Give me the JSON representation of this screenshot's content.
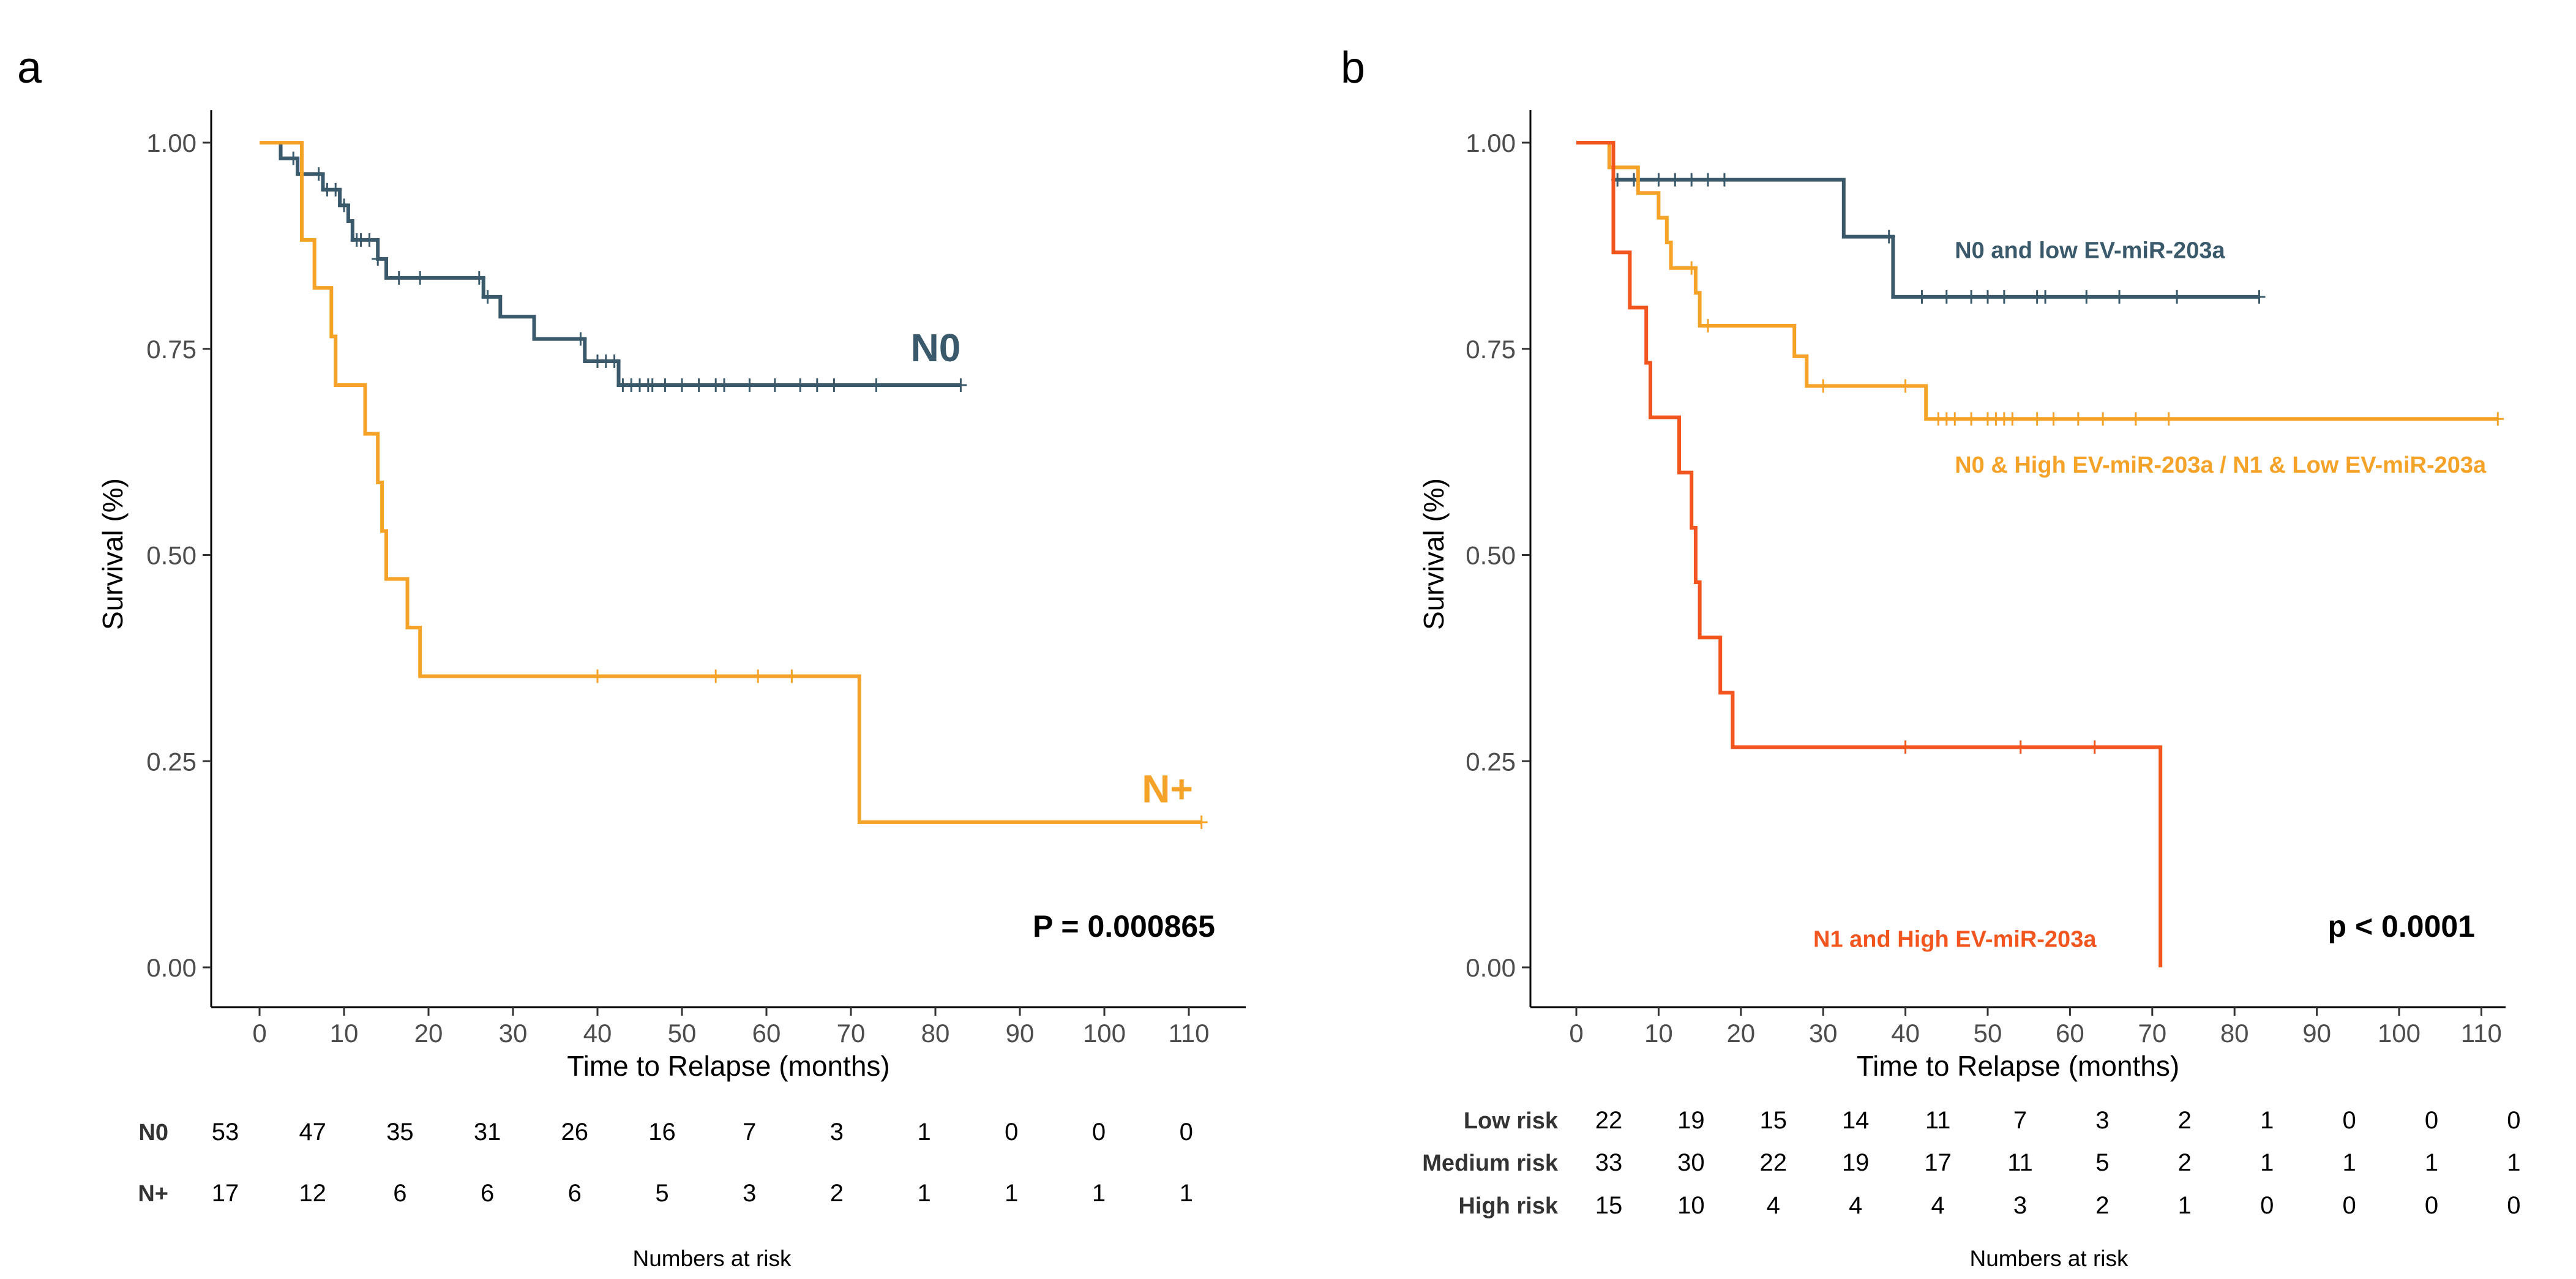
{
  "chart_data": [
    {
      "panel": "a",
      "type": "line",
      "subtype": "kaplan-meier",
      "xlabel": "Time to Relapse (months)",
      "ylabel": "Survival (%)",
      "xlim": [
        0,
        112
      ],
      "ylim": [
        0,
        1
      ],
      "xticks": [
        "0",
        "10",
        "20",
        "30",
        "40",
        "50",
        "60",
        "70",
        "80",
        "90",
        "100",
        "110"
      ],
      "yticks": [
        "0.00",
        "0.25",
        "0.50",
        "0.75",
        "1.00"
      ],
      "pvalue": "P = 0.000865",
      "series": [
        {
          "name": "N0",
          "color": "#3a5a6b",
          "label_fontsize": "large",
          "label_anchor": "end",
          "label_pos": [
            83,
            0.735
          ],
          "steps": [
            [
              0,
              1.0
            ],
            [
              2.5,
              0.981
            ],
            [
              4.5,
              0.962
            ],
            [
              7.5,
              0.943
            ],
            [
              9.5,
              0.924
            ],
            [
              10.5,
              0.905
            ],
            [
              11,
              0.882
            ],
            [
              14,
              0.859
            ],
            [
              15,
              0.836
            ],
            [
              26.5,
              0.813
            ],
            [
              28.5,
              0.789
            ],
            [
              32.5,
              0.762
            ],
            [
              38.5,
              0.735
            ],
            [
              42.5,
              0.706
            ],
            [
              83,
              0.706
            ]
          ],
          "censor_x": [
            4,
            7,
            8,
            9,
            10,
            11.5,
            12,
            13,
            14,
            16.5,
            19,
            26,
            27,
            38,
            40,
            41,
            42,
            43,
            44,
            45,
            46,
            46.5,
            48,
            50,
            52,
            54,
            55,
            58,
            61,
            64,
            66,
            68,
            73,
            83
          ]
        },
        {
          "name": "N+",
          "color": "#f5a228",
          "label_fontsize": "large",
          "label_anchor": "end",
          "label_pos": [
            110.5,
            0.2
          ],
          "steps": [
            [
              0,
              1.0
            ],
            [
              5,
              0.882
            ],
            [
              6.5,
              0.824
            ],
            [
              8.5,
              0.765
            ],
            [
              9,
              0.706
            ],
            [
              12.5,
              0.647
            ],
            [
              14,
              0.588
            ],
            [
              14.5,
              0.529
            ],
            [
              15,
              0.471
            ],
            [
              17.5,
              0.412
            ],
            [
              19,
              0.353
            ],
            [
              71,
              0.176
            ],
            [
              111.5,
              0.176
            ]
          ],
          "censor_x": [
            40,
            54,
            59,
            63,
            111.5
          ]
        }
      ],
      "risk_table": {
        "caption": "Numbers at risk",
        "times": [
          0,
          10,
          20,
          30,
          40,
          50,
          60,
          70,
          80,
          90,
          100,
          110
        ],
        "rows": [
          {
            "name": "N0",
            "values": [
              "53",
              "47",
              "35",
              "31",
              "26",
              "16",
              "7",
              "3",
              "1",
              "0",
              "0",
              "0"
            ]
          },
          {
            "name": "N+",
            "values": [
              "17",
              "12",
              "6",
              "6",
              "6",
              "5",
              "3",
              "2",
              "1",
              "1",
              "1",
              "1"
            ]
          }
        ]
      }
    },
    {
      "panel": "b",
      "type": "line",
      "subtype": "kaplan-meier",
      "xlabel": "Time to Relapse (months)",
      "ylabel": "Survival (%)",
      "xlim": [
        0,
        112
      ],
      "ylim": [
        0,
        1
      ],
      "xticks": [
        "0",
        "10",
        "20",
        "30",
        "40",
        "50",
        "60",
        "70",
        "80",
        "90",
        "100",
        "110"
      ],
      "yticks": [
        "0.00",
        "0.25",
        "0.50",
        "0.75",
        "1.00"
      ],
      "pvalue": "p < 0.0001",
      "series": [
        {
          "name": "N0 and low EV-miR-203a",
          "color": "#3a5a6b",
          "label_fontsize": "small",
          "label_anchor": "start",
          "label_pos": [
            46,
            0.86
          ],
          "steps": [
            [
              0,
              1.0
            ],
            [
              4.5,
              0.955
            ],
            [
              32.5,
              0.886
            ],
            [
              38.5,
              0.813
            ],
            [
              83,
              0.813
            ]
          ],
          "censor_x": [
            5,
            7,
            10,
            12,
            14,
            16,
            18,
            38,
            42,
            45,
            48,
            50,
            52,
            56,
            57,
            62,
            66,
            73,
            83
          ]
        },
        {
          "name": "N0 & High EV-miR-203a / N1 & Low EV-miR-203a",
          "color": "#f5a228",
          "label_fontsize": "small",
          "label_anchor": "start",
          "label_pos": [
            46,
            0.6
          ],
          "steps": [
            [
              0,
              1.0
            ],
            [
              4,
              0.97
            ],
            [
              7.5,
              0.939
            ],
            [
              10,
              0.909
            ],
            [
              11,
              0.879
            ],
            [
              11.5,
              0.848
            ],
            [
              14.5,
              0.818
            ],
            [
              15,
              0.778
            ],
            [
              26.5,
              0.741
            ],
            [
              28,
              0.705
            ],
            [
              42.5,
              0.665
            ],
            [
              112,
              0.665
            ]
          ],
          "censor_x": [
            14,
            16,
            30,
            40,
            44,
            45,
            46,
            48,
            50,
            51,
            52,
            53,
            56,
            58,
            61,
            64,
            68,
            72,
            112
          ]
        },
        {
          "name": "N1 and High EV-miR-203a",
          "color": "#f2551e",
          "label_fontsize": "small",
          "label_anchor": "middle",
          "label_pos": [
            46,
            0.025
          ],
          "steps": [
            [
              0,
              1.0
            ],
            [
              4.5,
              0.867
            ],
            [
              6.5,
              0.8
            ],
            [
              8.5,
              0.733
            ],
            [
              9,
              0.667
            ],
            [
              12.5,
              0.6
            ],
            [
              14,
              0.533
            ],
            [
              14.5,
              0.467
            ],
            [
              15,
              0.4
            ],
            [
              17.5,
              0.333
            ],
            [
              19,
              0.267
            ],
            [
              71,
              0.267
            ],
            [
              71,
              0.0
            ]
          ],
          "censor_x": [
            40,
            54,
            63
          ]
        }
      ],
      "risk_table": {
        "caption": "Numbers at risk",
        "times": [
          0,
          10,
          20,
          30,
          40,
          50,
          60,
          70,
          80,
          90,
          100,
          110
        ],
        "rows": [
          {
            "name": "Low risk",
            "values": [
              "22",
              "19",
              "15",
              "14",
              "11",
              "7",
              "3",
              "2",
              "1",
              "0",
              "0",
              "0"
            ]
          },
          {
            "name": "Medium risk",
            "values": [
              "33",
              "30",
              "22",
              "19",
              "17",
              "11",
              "5",
              "2",
              "1",
              "1",
              "1",
              "1"
            ]
          },
          {
            "name": "High risk",
            "values": [
              "15",
              "10",
              "4",
              "4",
              "4",
              "3",
              "2",
              "1",
              "0",
              "0",
              "0",
              "0"
            ]
          }
        ]
      }
    }
  ]
}
